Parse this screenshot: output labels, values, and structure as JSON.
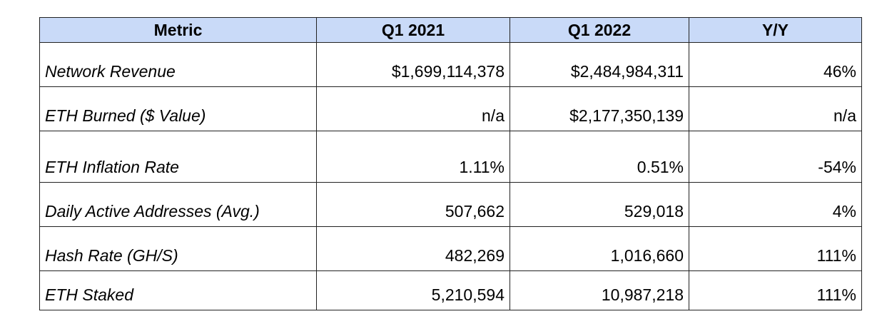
{
  "table": {
    "header": [
      "Metric",
      "Q1 2021",
      "Q1 2022",
      "Y/Y"
    ],
    "rows": [
      [
        "Network Revenue",
        "$1,699,114,378",
        "$2,484,984,311",
        "46%"
      ],
      [
        "ETH Burned ($ Value)",
        "n/a",
        "$2,177,350,139",
        "n/a"
      ],
      [
        "ETH Inflation Rate",
        "1.11%",
        "0.51%",
        "-54%"
      ],
      [
        "Daily Active Addresses (Avg.)",
        "507,662",
        "529,018",
        "4%"
      ],
      [
        "Hash Rate (GH/S)",
        "482,269",
        "1,016,660",
        "111%"
      ],
      [
        "ETH Staked",
        "5,210,594",
        "10,987,218",
        "111%"
      ]
    ]
  }
}
